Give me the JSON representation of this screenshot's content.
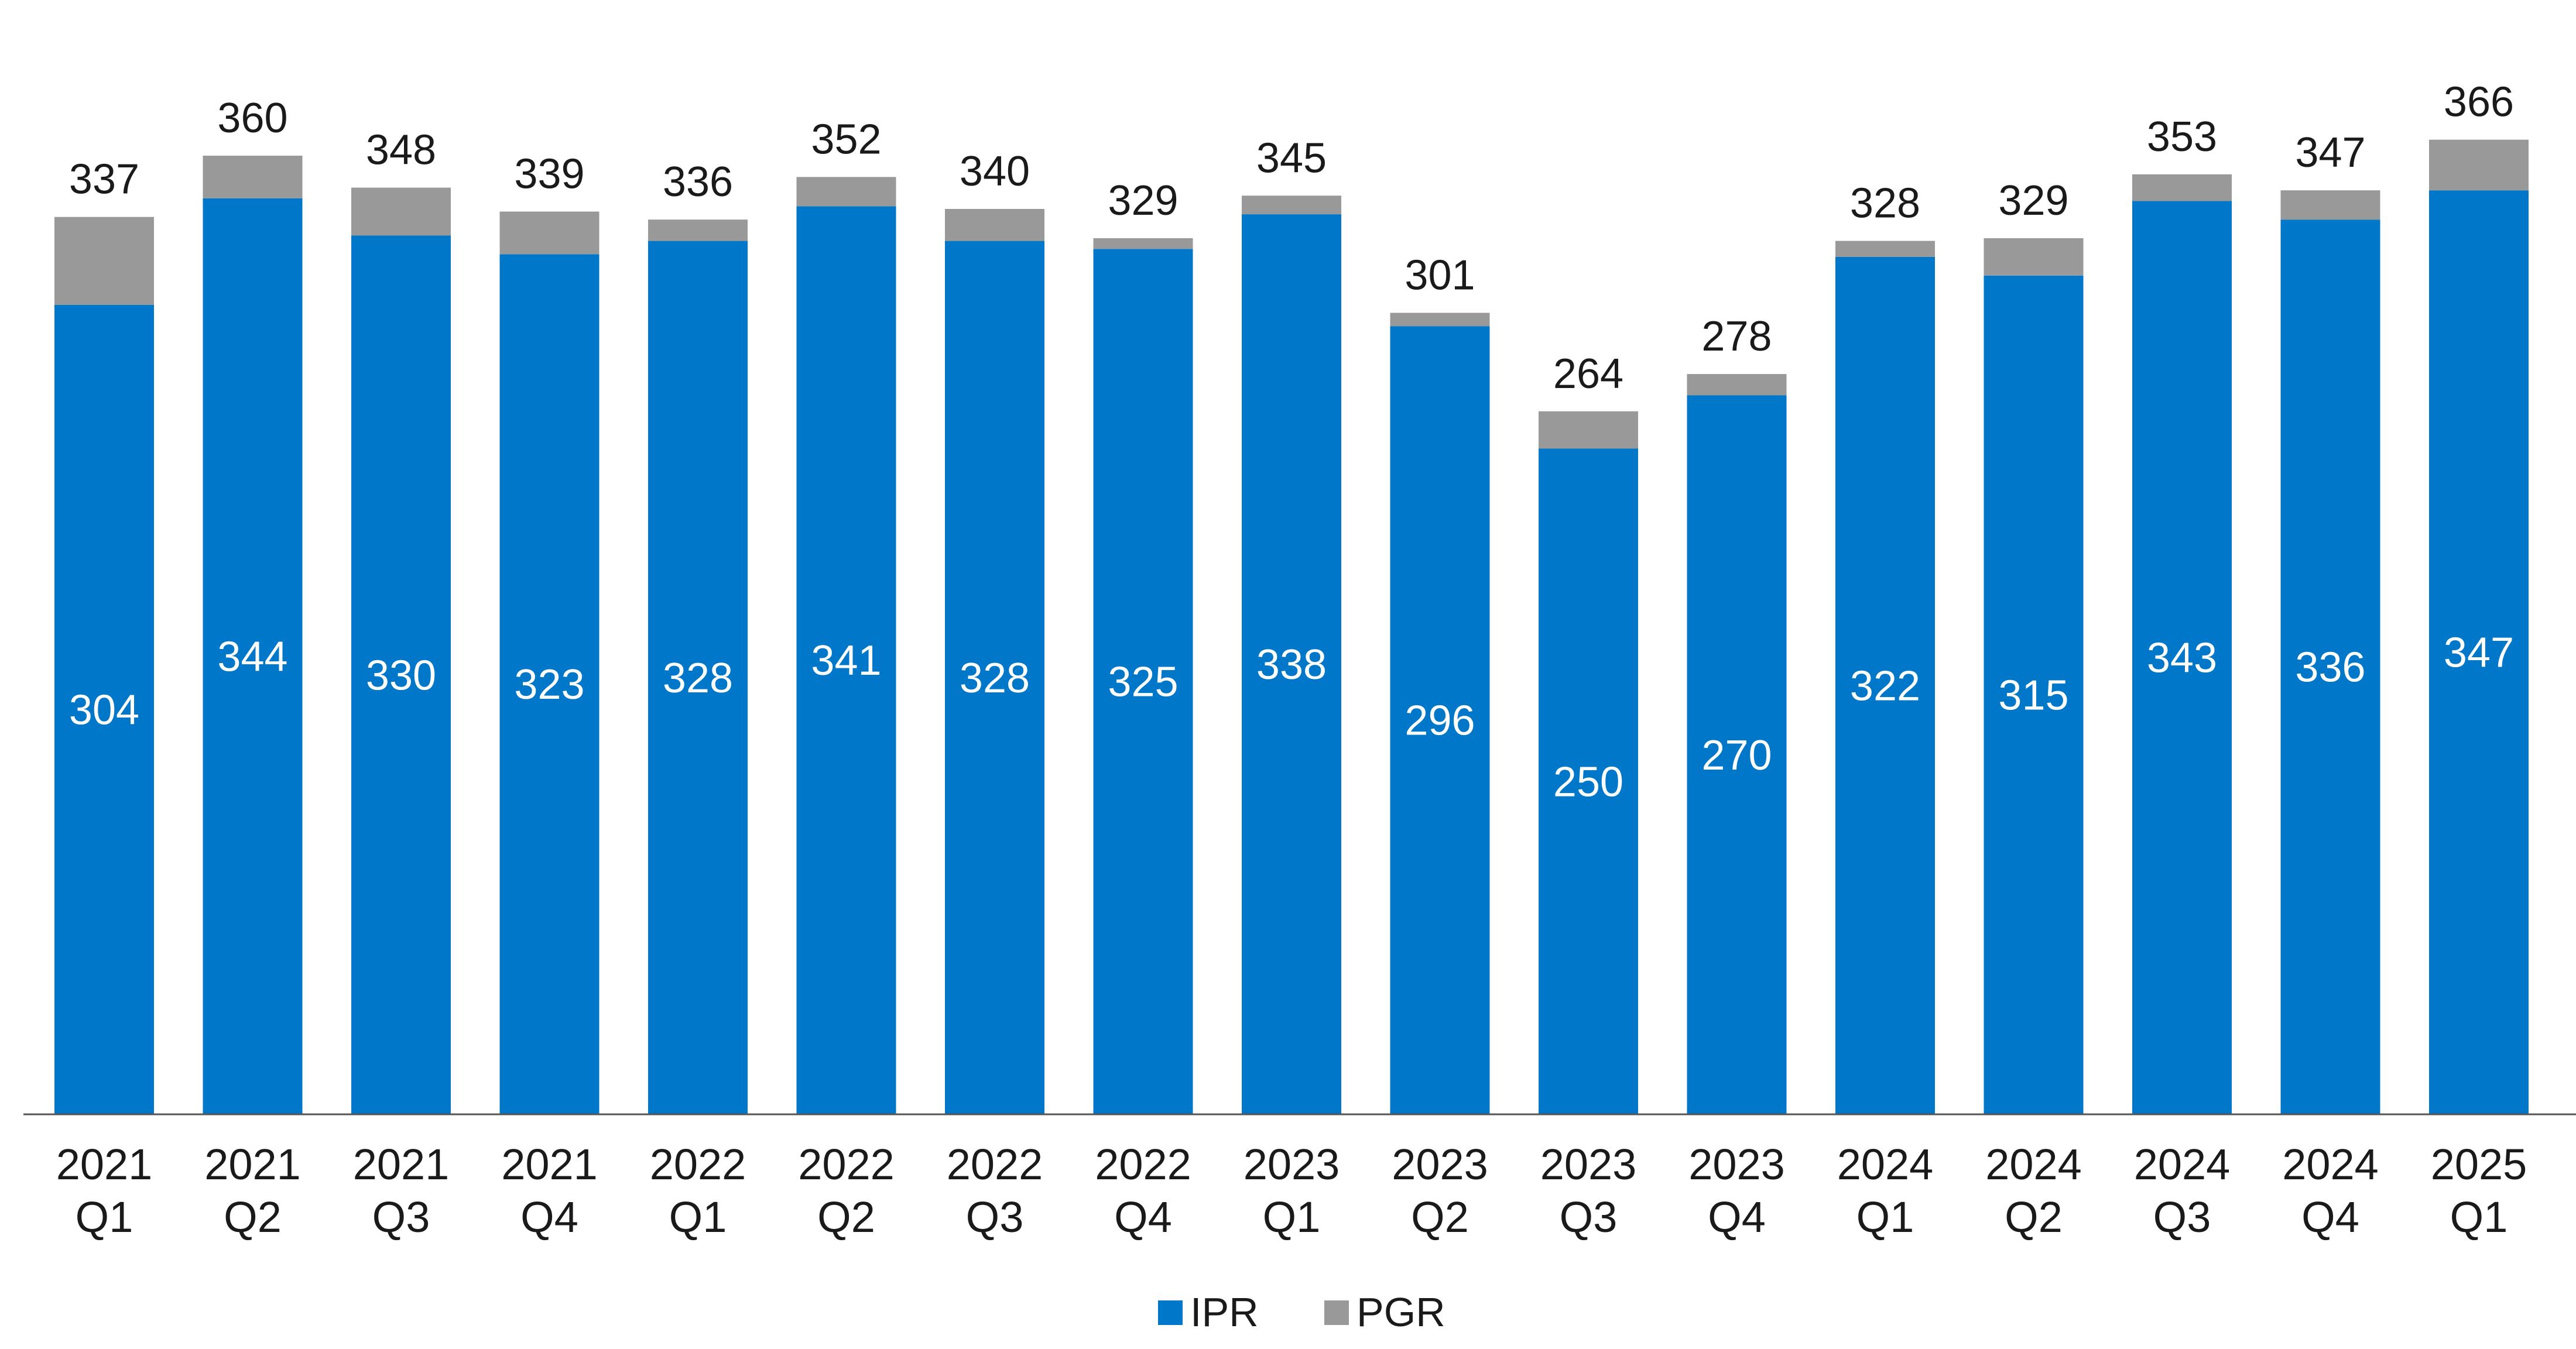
{
  "chart_data": {
    "type": "bar",
    "stacked": true,
    "title": "",
    "xlabel": "",
    "ylabel": "",
    "ylim": [
      0,
      400
    ],
    "grid": false,
    "legend_position": "bottom-center",
    "categories": [
      "2021 Q1",
      "2021 Q2",
      "2021 Q3",
      "2021 Q4",
      "2022 Q1",
      "2022 Q2",
      "2022 Q3",
      "2022 Q4",
      "2023 Q1",
      "2023 Q2",
      "2023 Q3",
      "2023 Q4",
      "2024 Q1",
      "2024 Q2",
      "2024 Q3",
      "2024 Q4",
      "2025 Q1"
    ],
    "series": [
      {
        "name": "IPR",
        "color": "#0077C8",
        "values": [
          304,
          344,
          330,
          323,
          328,
          341,
          328,
          325,
          338,
          296,
          250,
          270,
          322,
          315,
          343,
          336,
          347
        ]
      },
      {
        "name": "PGR",
        "color": "#999999",
        "values": [
          33,
          16,
          18,
          16,
          8,
          11,
          12,
          4,
          7,
          5,
          14,
          8,
          6,
          14,
          10,
          11,
          19
        ]
      }
    ],
    "totals": [
      337,
      360,
      348,
      339,
      336,
      352,
      340,
      329,
      345,
      301,
      264,
      278,
      328,
      329,
      353,
      347,
      366
    ]
  }
}
